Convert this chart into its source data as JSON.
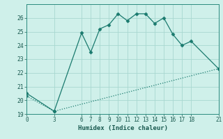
{
  "xlabel": "Humidex (Indice chaleur)",
  "background_color": "#cff0ea",
  "grid_color": "#a8d8d0",
  "line_color": "#1a7a6e",
  "series1_x": [
    0,
    3,
    6,
    7,
    8,
    9,
    10,
    11,
    12,
    13,
    14,
    15,
    16,
    17,
    18,
    21
  ],
  "series1_y": [
    20.5,
    19.2,
    24.9,
    23.5,
    25.2,
    25.5,
    26.3,
    25.8,
    26.3,
    26.3,
    25.6,
    26.0,
    24.8,
    24.0,
    24.3,
    22.3
  ],
  "series2_x": [
    0,
    3,
    21
  ],
  "series2_y": [
    20.3,
    19.2,
    22.3
  ],
  "ylim": [
    19,
    27
  ],
  "xlim": [
    0,
    21
  ],
  "yticks": [
    19,
    20,
    21,
    22,
    23,
    24,
    25,
    26
  ],
  "xticks": [
    0,
    3,
    6,
    7,
    8,
    9,
    10,
    11,
    12,
    13,
    14,
    15,
    16,
    17,
    18,
    21
  ],
  "markersize": 2.5,
  "linewidth": 0.9
}
